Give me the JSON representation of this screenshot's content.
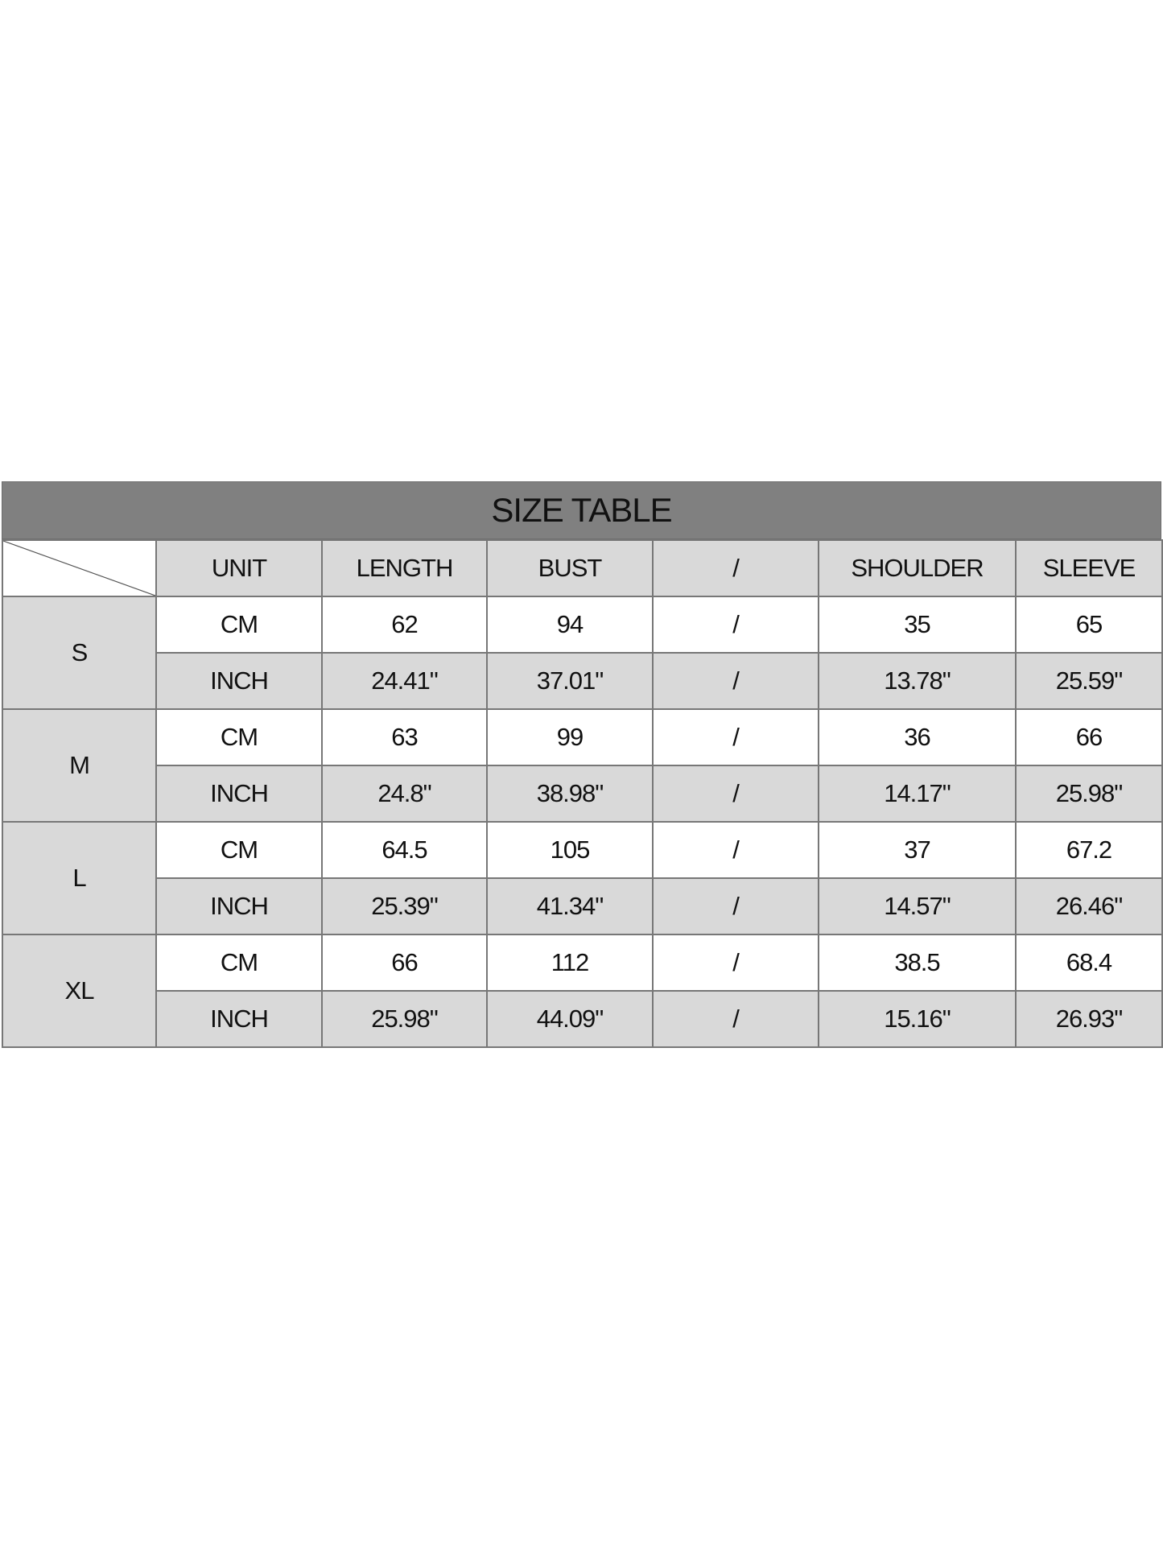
{
  "title": "SIZE TABLE",
  "headers": [
    "UNIT",
    "LENGTH",
    "BUST",
    "/",
    "SHOULDER",
    "SLEEVE"
  ],
  "rows": [
    {
      "size": "S",
      "cm": [
        "CM",
        "62",
        "94",
        "/",
        "35",
        "65"
      ],
      "inch": [
        "INCH",
        "24.41\"",
        "37.01\"",
        "/",
        "13.78\"",
        "25.59\""
      ]
    },
    {
      "size": "M",
      "cm": [
        "CM",
        "63",
        "99",
        "/",
        "36",
        "66"
      ],
      "inch": [
        "INCH",
        "24.8\"",
        "38.98\"",
        "/",
        "14.17\"",
        "25.98\""
      ]
    },
    {
      "size": "L",
      "cm": [
        "CM",
        "64.5",
        "105",
        "/",
        "37",
        "67.2"
      ],
      "inch": [
        "INCH",
        "25.39\"",
        "41.34\"",
        "/",
        "14.57\"",
        "26.46\""
      ]
    },
    {
      "size": "XL",
      "cm": [
        "CM",
        "66",
        "112",
        "/",
        "38.5",
        "68.4"
      ],
      "inch": [
        "INCH",
        "25.98\"",
        "44.09\"",
        "/",
        "15.16\"",
        "26.93\""
      ]
    }
  ],
  "colors": {
    "title_bg": "#808080",
    "cell_gray": "#d9d9d9",
    "cell_white": "#ffffff"
  }
}
